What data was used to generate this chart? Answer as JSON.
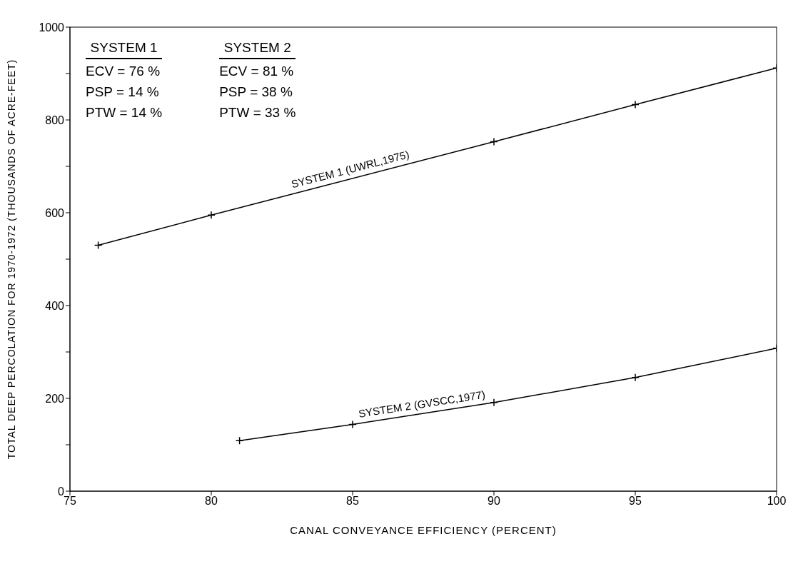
{
  "chart_data": {
    "type": "line",
    "xlabel": "CANAL CONVEYANCE EFFICIENCY (PERCENT)",
    "ylabel": "TOTAL DEEP PERCOLATION FOR 1970-1972 (THOUSANDS OF ACRE-FEET)",
    "series": [
      {
        "name": "SYSTEM 1 (UWRL,1975)",
        "color": "#000000",
        "x": [
          76,
          80,
          90,
          95,
          100
        ],
        "values": [
          530,
          595,
          753,
          833,
          912
        ]
      },
      {
        "name": "SYSTEM 2 (GVSCC,1977)",
        "color": "#000000",
        "x": [
          81,
          85,
          90,
          95,
          100
        ],
        "values": [
          109,
          144,
          191,
          245,
          308
        ]
      }
    ],
    "xlim": [
      75,
      100
    ],
    "xticks": [
      75,
      80,
      85,
      90,
      95,
      100
    ],
    "ylim": [
      0,
      1000
    ],
    "yticks": [
      0,
      {
        "value": 100,
        "label": null
      },
      200,
      {
        "value": 300,
        "label": null
      },
      400,
      {
        "value": 500,
        "label": null
      },
      600,
      {
        "value": 700,
        "label": null
      },
      800,
      {
        "value": 900,
        "label": null
      },
      1000
    ],
    "grid": false,
    "legend": false,
    "marker": "cross",
    "line_style": "solid",
    "annotations": [
      "SYSTEM 1",
      "ECV = 76 %",
      "PSP = 14 %",
      "PTW = 14 %",
      "SYSTEM 2",
      "ECV = 81 %",
      "PSP = 38 %",
      "PTW = 33 %"
    ]
  }
}
